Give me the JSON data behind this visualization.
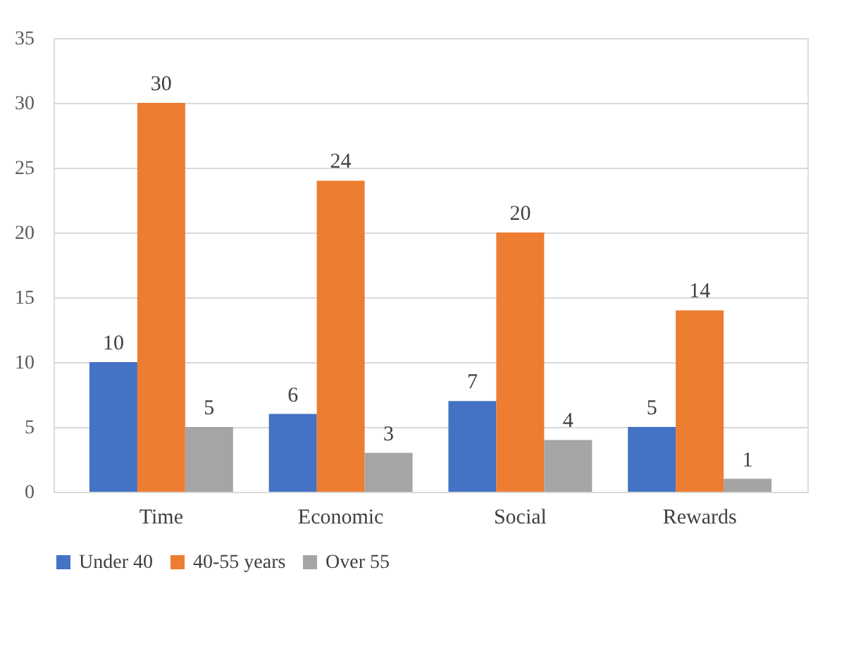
{
  "chart_data": {
    "type": "bar",
    "categories": [
      "Time",
      "Economic",
      "Social",
      "Rewards"
    ],
    "series": [
      {
        "name": "Under 40",
        "color": "#4472c4",
        "values": [
          10,
          6,
          7,
          5
        ]
      },
      {
        "name": "40-55 years",
        "color": "#ed7d31",
        "values": [
          30,
          24,
          20,
          14
        ]
      },
      {
        "name": "Over 55",
        "color": "#a5a5a5",
        "values": [
          5,
          3,
          4,
          1
        ]
      }
    ],
    "ylim": [
      0,
      35
    ],
    "yticks": [
      0,
      5,
      10,
      15,
      20,
      25,
      30,
      35
    ],
    "grid": "y",
    "legend": "bottom",
    "data_labels": true
  }
}
